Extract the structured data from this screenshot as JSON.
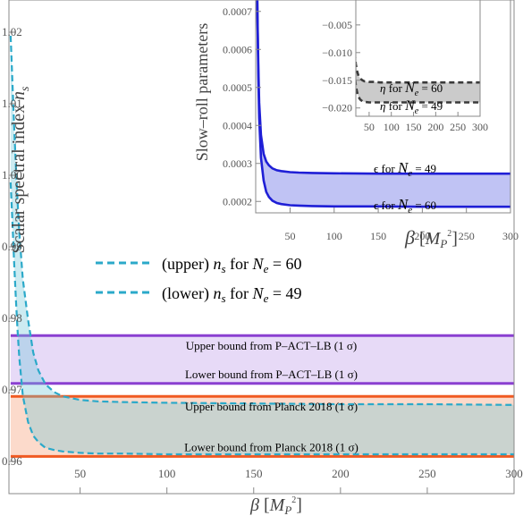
{
  "chart_data": [
    {
      "type": "line",
      "ylabel": "Scalar spectral index n_s",
      "xlabel": "β [M_P²]",
      "xlim": [
        9,
        300
      ],
      "ylim": [
        0.9555,
        1.0245
      ],
      "x_ticks": [
        "50",
        "100",
        "150",
        "200",
        "250",
        "300"
      ],
      "y_ticks": [
        "0.96",
        "0.97",
        "0.98",
        "0.99",
        "1.00",
        "1.01",
        "1.02"
      ],
      "series": [
        {
          "name": "(upper) n_s for N_e = 60",
          "color": "#2ba9c9",
          "style": "dashed",
          "x": [
            10,
            11,
            12,
            13,
            14,
            15,
            17,
            20,
            23,
            26,
            30,
            35,
            40,
            50,
            60,
            75,
            100,
            150,
            200,
            250,
            300
          ],
          "y": [
            1.0195,
            1.013,
            1.0068,
            1.0012,
            0.9962,
            0.992,
            0.9855,
            0.9798,
            0.9752,
            0.9727,
            0.9708,
            0.9697,
            0.9691,
            0.9686,
            0.9684,
            0.9683,
            0.9682,
            0.9681,
            0.968,
            0.968,
            0.9679
          ]
        },
        {
          "name": "(lower) n_s for N_e = 49",
          "color": "#2ba9c9",
          "style": "dashed",
          "x": [
            10,
            11,
            12,
            13,
            14,
            15,
            17,
            20,
            23,
            26,
            30,
            35,
            40,
            50,
            60,
            75,
            100,
            150,
            200,
            250,
            300
          ],
          "y": [
            0.999,
            0.9935,
            0.9878,
            0.9826,
            0.9782,
            0.9745,
            0.9692,
            0.9655,
            0.9636,
            0.9627,
            0.9619,
            0.9616,
            0.9614,
            0.9612,
            0.9611,
            0.9611,
            0.961,
            0.961,
            0.961,
            0.961,
            0.961
          ]
        }
      ],
      "bands": [
        {
          "upper_value": 0.9776,
          "lower_value": 0.9709,
          "upper_label": "Upper bound from P–ACT–LB (1 σ)",
          "lower_label": "Lower bound from P–ACT–LB (1 σ)",
          "line_color": "#8a3fd1",
          "fill_color": "#e3d3f6"
        },
        {
          "upper_value": 0.9691,
          "lower_value": 0.9607,
          "upper_label": "Upper bound from Planck 2018 (1 σ)",
          "lower_label": "Lower bound from Planck 2018 (1 σ)",
          "line_color": "#f05a22",
          "fill_color": "#fbd3c2"
        }
      ],
      "legend": {
        "placement": "middle-left",
        "entries": [
          {
            "prefix": "(upper)",
            "quantity": "n",
            "sub": "s",
            "for": "for",
            "ne_label": "N",
            "ne_sub": "e",
            "eq": "=",
            "ne_value": "60"
          },
          {
            "prefix": "(lower)",
            "quantity": "n",
            "sub": "s",
            "for": "for",
            "ne_label": "N",
            "ne_sub": "e",
            "eq": "=",
            "ne_value": "49"
          }
        ]
      }
    },
    {
      "type": "line",
      "inset": true,
      "ylabel": "Slow–roll parameters",
      "xlabel": "β [M_P²]",
      "xlim": [
        11,
        300
      ],
      "ylim": [
        0.00017,
        0.00073
      ],
      "x_ticks": [
        "50",
        "100",
        "150",
        "200",
        "250",
        "300"
      ],
      "y_ticks": [
        "0.0002",
        "0.0003",
        "0.0004",
        "0.0005",
        "0.0006",
        "0.0007"
      ],
      "series": [
        {
          "name": "ϵ for N_e = 49",
          "color": "#1f1fd6",
          "x": [
            12,
            13,
            14,
            15,
            17,
            20,
            23,
            26,
            30,
            35,
            40,
            50,
            60,
            75,
            100,
            150,
            200,
            250,
            300
          ],
          "y": [
            0.0009,
            0.00069,
            0.00055,
            0.00046,
            0.000375,
            0.000325,
            0.000305,
            0.000295,
            0.000287,
            0.000282,
            0.00028,
            0.000277,
            0.000276,
            0.000275,
            0.000274,
            0.000273,
            0.000273,
            0.000273,
            0.000273
          ]
        },
        {
          "name": "ϵ for N_e = 60",
          "color": "#1f1fd6",
          "x": [
            12,
            13,
            14,
            15,
            17,
            20,
            23,
            26,
            30,
            35,
            40,
            50,
            60,
            75,
            100,
            150,
            200,
            250,
            300
          ],
          "y": [
            0.0009,
            0.00068,
            0.00052,
            0.00042,
            0.000315,
            0.000255,
            0.000225,
            0.000212,
            0.000202,
            0.000196,
            0.000193,
            0.00019,
            0.000189,
            0.000188,
            0.000187,
            0.000187,
            0.000186,
            0.000186,
            0.000186
          ]
        },
        {
          "name": "η for N_e = 60",
          "color": "#3a3a3a",
          "style": "dashed",
          "x": [
            12,
            14,
            16,
            18,
            20,
            23,
            26,
            30,
            35,
            40,
            50,
            60,
            75,
            100,
            150,
            200,
            250,
            300
          ],
          "y": [
            -0.002,
            -0.0055,
            -0.0085,
            -0.0105,
            -0.0121,
            -0.0134,
            -0.0142,
            -0.0147,
            -0.015,
            -0.0152,
            -0.0153,
            -0.0153,
            -0.0154,
            -0.0154,
            -0.0154,
            -0.0154,
            -0.0154,
            -0.0154
          ]
        },
        {
          "name": "η for N_e = 49",
          "color": "#3a3a3a",
          "style": "dashed",
          "x": [
            12,
            14,
            16,
            18,
            20,
            23,
            26,
            30,
            35,
            40,
            50,
            60,
            75,
            100,
            150,
            200,
            250,
            300
          ],
          "y": [
            -0.002,
            -0.0075,
            -0.0115,
            -0.0142,
            -0.016,
            -0.0172,
            -0.018,
            -0.0185,
            -0.0188,
            -0.0189,
            -0.019,
            -0.019,
            -0.019,
            -0.019,
            -0.019,
            -0.019,
            -0.019,
            -0.019
          ]
        }
      ],
      "curve_labels": [
        {
          "symbol": "ϵ",
          "for": "for",
          "ne_label": "N",
          "ne_sub": "e",
          "eq": "=",
          "ne_value": "49"
        },
        {
          "symbol": "ϵ",
          "for": "for",
          "ne_label": "N",
          "ne_sub": "e",
          "eq": "=",
          "ne_value": "60"
        }
      ]
    },
    {
      "type": "line",
      "inset": true,
      "xlim": [
        20,
        300
      ],
      "ylim": [
        -0.0215,
        -0.0005
      ],
      "x_ticks": [
        "50",
        "100",
        "150",
        "200",
        "250",
        "300"
      ],
      "y_ticks": [
        "−0.005",
        "−0.010",
        "−0.015",
        "−0.020"
      ],
      "curve_labels": [
        {
          "symbol": "η",
          "for": "for",
          "ne_label": "N",
          "ne_sub": "e",
          "eq": "=",
          "ne_value": "60"
        },
        {
          "symbol": "η",
          "for": "for",
          "ne_label": "N",
          "ne_sub": "e",
          "eq": "=",
          "ne_value": "49"
        }
      ]
    }
  ]
}
